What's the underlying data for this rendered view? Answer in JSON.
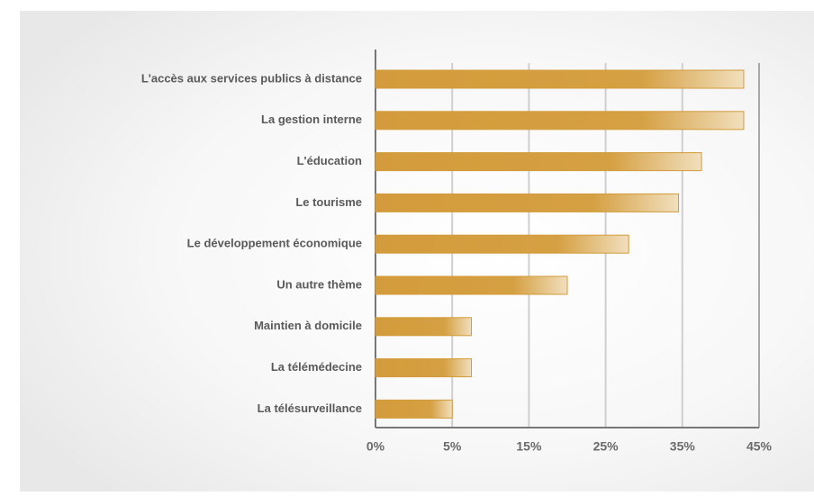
{
  "chart_data": {
    "type": "bar",
    "orientation": "horizontal",
    "categories": [
      "L'accès aux services publics à distance",
      "La gestion interne",
      "L'éducation",
      "Le tourisme",
      "Le développement économique",
      "Un autre thème",
      "Maintien à domicile",
      "La télémédecine",
      "La télésurveillance"
    ],
    "values": [
      43,
      43,
      37.5,
      34.5,
      28,
      20,
      7.5,
      7.5,
      5
    ],
    "color": "#d39b3b",
    "xlim": [
      0,
      45
    ],
    "xticks": [
      {
        "value": 0,
        "label": "0%"
      },
      {
        "value": 5,
        "label": "5%"
      },
      {
        "value": 15,
        "label": "15%"
      },
      {
        "value": 25,
        "label": "25%"
      },
      {
        "value": 35,
        "label": "35%"
      },
      {
        "value": 45,
        "label": "45%"
      }
    ],
    "grid": true
  }
}
